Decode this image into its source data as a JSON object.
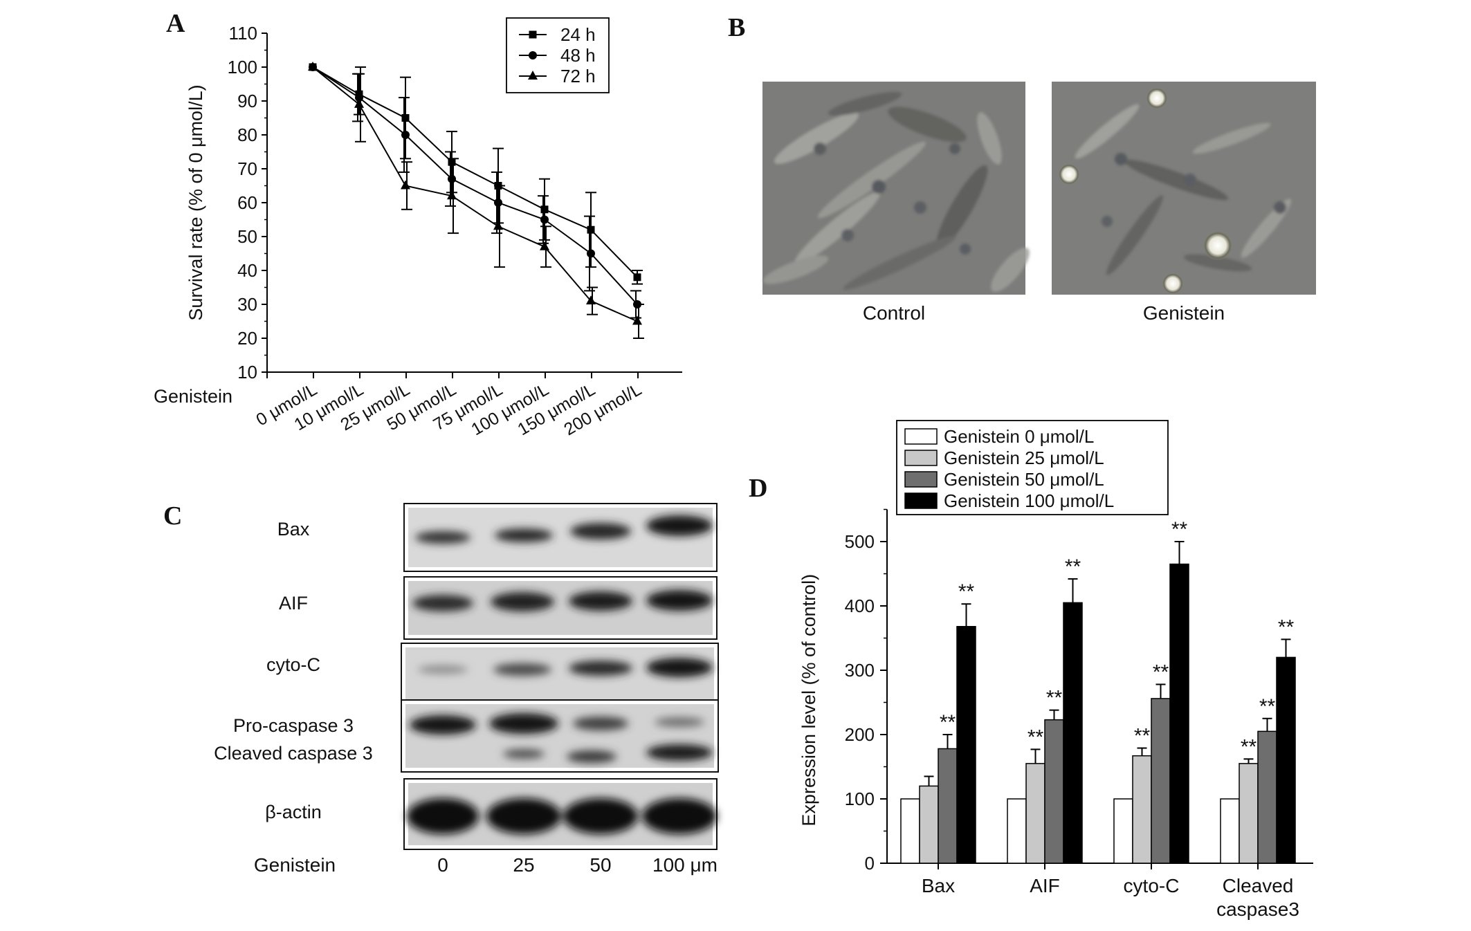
{
  "panels": {
    "a": {
      "letter": "A"
    },
    "b": {
      "letter": "B",
      "labels": [
        "Control",
        "Genistein"
      ]
    },
    "c": {
      "letter": "C",
      "bands": [
        "Bax",
        "AIF",
        "cyto-C",
        "Pro-caspase 3",
        "Cleaved caspase 3",
        "β-actin"
      ],
      "row_label": "Genistein",
      "lanes": [
        "0",
        "25",
        "50",
        "100 μm"
      ]
    },
    "d": {
      "letter": "D"
    }
  },
  "chart_data": [
    {
      "panel": "A",
      "type": "line",
      "ylabel": "Survival rate (% of 0 μmol/L)",
      "xlabel": "Genistein",
      "ylim": [
        10,
        110
      ],
      "yticks": [
        10,
        20,
        30,
        40,
        50,
        60,
        70,
        80,
        90,
        100,
        110
      ],
      "categories": [
        "0 μmol/L",
        "10 μmol/L",
        "25 μmol/L",
        "50 μmol/L",
        "75 μmol/L",
        "100 μmol/L",
        "150 μmol/L",
        "200 μmol/L"
      ],
      "legend_position": "top-right",
      "series": [
        {
          "name": "24 h",
          "marker": "square",
          "values": [
            100,
            92,
            85,
            72,
            65,
            58,
            52,
            38
          ],
          "errors": [
            0,
            6,
            12,
            9,
            11,
            9,
            11,
            2
          ]
        },
        {
          "name": "48 h",
          "marker": "circle",
          "values": [
            100,
            91,
            80,
            67,
            60,
            55,
            45,
            30
          ],
          "errors": [
            0,
            7,
            11,
            8,
            9,
            7,
            11,
            4
          ]
        },
        {
          "name": "72 h",
          "marker": "triangle",
          "values": [
            100,
            89,
            65,
            62,
            53,
            47,
            31,
            25
          ],
          "errors": [
            0,
            11,
            7,
            11,
            12,
            6,
            4,
            5
          ]
        }
      ]
    },
    {
      "panel": "D",
      "type": "bar",
      "ylabel": "Expression level (% of control)",
      "ylim": [
        0,
        550
      ],
      "yticks": [
        0,
        100,
        200,
        300,
        400,
        500
      ],
      "categories": [
        "Bax",
        "AIF",
        "cyto-C",
        "Cleaved caspase3"
      ],
      "legend_position": "top",
      "significance_label": "**",
      "series": [
        {
          "name": "Genistein 0 μmol/L",
          "color": "#ffffff",
          "values": [
            100,
            100,
            100,
            100
          ],
          "errors": [
            0,
            0,
            0,
            0
          ],
          "sig": [
            false,
            false,
            false,
            false
          ]
        },
        {
          "name": "Genistein 25 μmol/L",
          "color": "#c8c8c8",
          "values": [
            120,
            155,
            167,
            155
          ],
          "errors": [
            15,
            22,
            12,
            7
          ],
          "sig": [
            false,
            true,
            true,
            true
          ]
        },
        {
          "name": "Genistein 50 μmol/L",
          "color": "#6e6e6e",
          "values": [
            178,
            223,
            256,
            205
          ],
          "errors": [
            22,
            15,
            22,
            20
          ],
          "sig": [
            true,
            true,
            true,
            true
          ]
        },
        {
          "name": "Genistein 100 μmol/L",
          "color": "#000000",
          "values": [
            368,
            405,
            465,
            320
          ],
          "errors": [
            35,
            37,
            35,
            28
          ],
          "sig": [
            true,
            true,
            true,
            true
          ]
        }
      ]
    }
  ]
}
